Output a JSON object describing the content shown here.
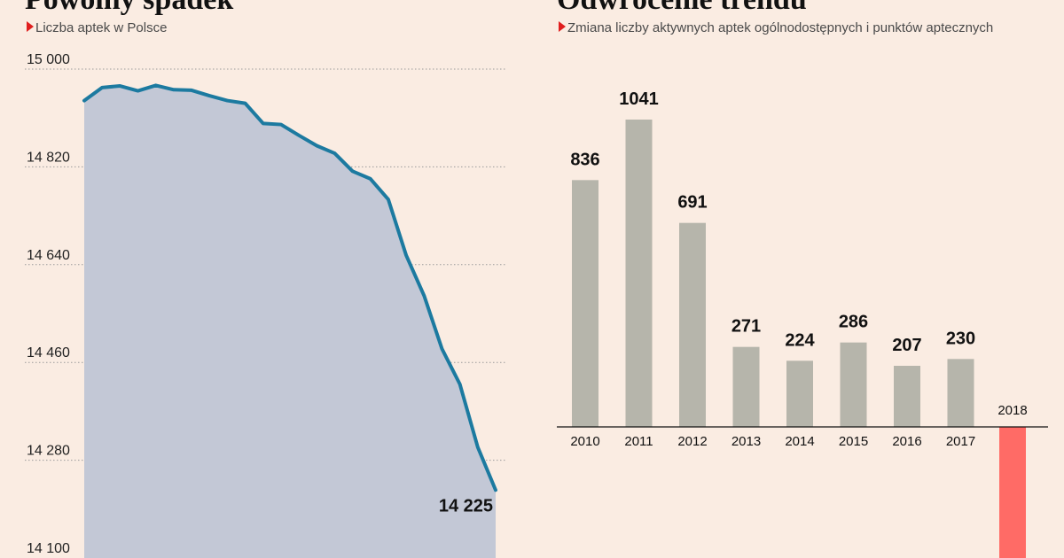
{
  "chart_data": [
    {
      "type": "area",
      "title": "Powolny spadek",
      "subtitle": "Liczba aptek w Polsce",
      "ylim": [
        14100,
        15000
      ],
      "yticks": [
        15000,
        14820,
        14640,
        14460,
        14280,
        14100
      ],
      "ytick_labels": [
        "15 000",
        "14 820",
        "14 640",
        "14 460",
        "14 280",
        "14 100"
      ],
      "grid": true,
      "values": [
        14942,
        14966,
        14969,
        14960,
        14970,
        14962,
        14961,
        14951,
        14942,
        14937,
        14900,
        14898,
        14878,
        14859,
        14845,
        14812,
        14798,
        14760,
        14657,
        14583,
        14485,
        14420,
        14304,
        14225
      ],
      "end_label": "14 225"
    },
    {
      "type": "bar",
      "title": "Odwrócenie trendu",
      "subtitle": "Zmiana liczby aktywnych aptek ogólnodostępnych i punktów aptecznych",
      "categories": [
        "2010",
        "2011",
        "2012",
        "2013",
        "2014",
        "2015",
        "2016",
        "2017",
        "2018"
      ],
      "values": [
        836,
        1041,
        691,
        271,
        224,
        286,
        207,
        230,
        null
      ],
      "value_labels": [
        "836",
        "1041",
        "691",
        "271",
        "224",
        "286",
        "207",
        "230",
        ""
      ],
      "negative_category": "2018"
    }
  ],
  "colors": {
    "background": "#faece2",
    "line": "#1c7aa0",
    "area": "#c3c8d6",
    "bar": "#b6b5ab",
    "bar_negative": "#ff6b66",
    "marker": "#e01e1e"
  }
}
